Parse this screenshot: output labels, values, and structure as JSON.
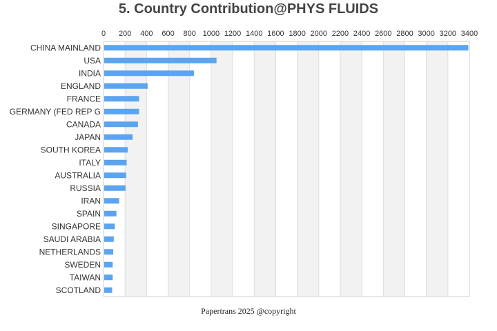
{
  "chart_data": {
    "type": "bar",
    "orientation": "horizontal",
    "title": "5. Country Contribution@PHYS FLUIDS",
    "xlim": [
      0,
      3400
    ],
    "xticks": [
      0,
      200,
      400,
      600,
      800,
      1000,
      1200,
      1400,
      1600,
      1800,
      2000,
      2200,
      2400,
      2600,
      2800,
      3000,
      3200,
      3400
    ],
    "x_axis_position": "top",
    "grid": "alternating vertical bands",
    "categories": [
      "CHINA MAINLAND",
      "USA",
      "INDIA",
      "ENGLAND",
      "FRANCE",
      "GERMANY (FED REP G",
      "CANADA",
      "JAPAN",
      "SOUTH KOREA",
      "ITALY",
      "AUSTRALIA",
      "RUSSIA",
      "IRAN",
      "SPAIN",
      "SINGAPORE",
      "SAUDI ARABIA",
      "NETHERLANDS",
      "SWEDEN",
      "TAIWAN",
      "SCOTLAND"
    ],
    "values": [
      3390,
      1050,
      840,
      410,
      330,
      330,
      320,
      270,
      225,
      215,
      210,
      205,
      145,
      120,
      105,
      95,
      90,
      85,
      85,
      80
    ],
    "bar_color": "#5ba4f0"
  },
  "footer": "Papertrans 2025 @copyright"
}
